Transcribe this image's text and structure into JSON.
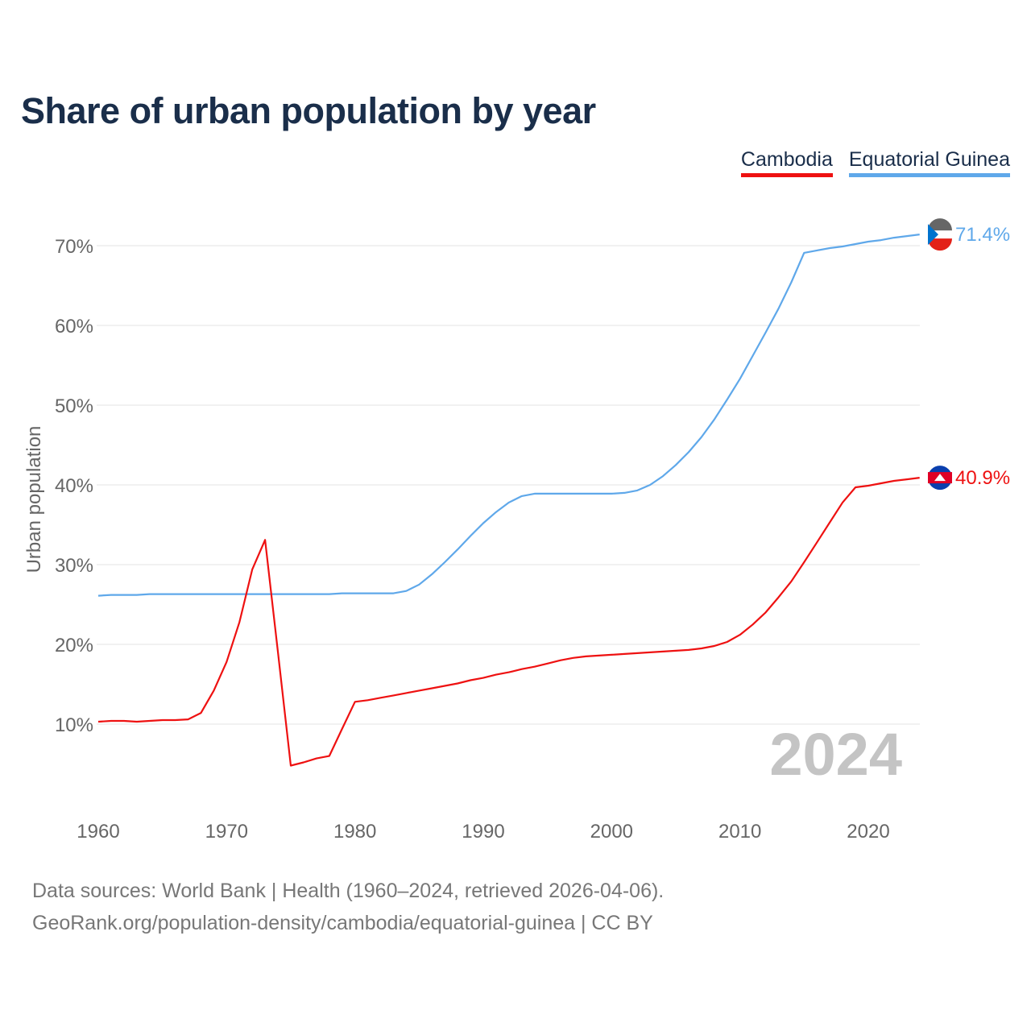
{
  "chart_data": {
    "type": "line",
    "title": "Share of urban population by year",
    "xlabel": "",
    "ylabel": "Urban population",
    "xlim": [
      1960,
      2024
    ],
    "ylim": [
      0,
      75
    ],
    "grid": true,
    "legend_position": "top-right",
    "xticks": [
      "1960",
      "1970",
      "1980",
      "1990",
      "2000",
      "2010",
      "2020"
    ],
    "yticks": [
      "10%",
      "20%",
      "30%",
      "40%",
      "50%",
      "60%",
      "70%"
    ],
    "watermark_year": "2024",
    "x": [
      1960,
      1961,
      1962,
      1963,
      1964,
      1965,
      1966,
      1967,
      1968,
      1969,
      1970,
      1971,
      1972,
      1973,
      1974,
      1975,
      1976,
      1977,
      1978,
      1979,
      1980,
      1981,
      1982,
      1983,
      1984,
      1985,
      1986,
      1987,
      1988,
      1989,
      1990,
      1991,
      1992,
      1993,
      1994,
      1995,
      1996,
      1997,
      1998,
      1999,
      2000,
      2001,
      2002,
      2003,
      2004,
      2005,
      2006,
      2007,
      2008,
      2009,
      2010,
      2011,
      2012,
      2013,
      2014,
      2015,
      2016,
      2017,
      2018,
      2019,
      2020,
      2021,
      2022,
      2023,
      2024
    ],
    "series": [
      {
        "name": "Cambodia",
        "color": "#ee1111",
        "end_label": "40.9%",
        "values": [
          10.3,
          10.4,
          10.4,
          10.3,
          10.4,
          10.5,
          10.5,
          10.6,
          11.4,
          14.2,
          17.8,
          22.8,
          29.4,
          33.1,
          19.0,
          4.8,
          5.2,
          5.7,
          6.0,
          9.4,
          12.8,
          13.0,
          13.3,
          13.6,
          13.9,
          14.2,
          14.5,
          14.8,
          15.1,
          15.5,
          15.8,
          16.2,
          16.5,
          16.9,
          17.2,
          17.6,
          18.0,
          18.3,
          18.5,
          18.6,
          18.7,
          18.8,
          18.9,
          19.0,
          19.1,
          19.2,
          19.3,
          19.5,
          19.8,
          20.3,
          21.2,
          22.5,
          24.0,
          25.9,
          27.9,
          30.3,
          32.8,
          35.3,
          37.8,
          39.7,
          39.9,
          40.2,
          40.5,
          40.7,
          40.9
        ]
      },
      {
        "name": "Equatorial Guinea",
        "color": "#5fa8ea",
        "end_label": "71.4%",
        "values": [
          26.1,
          26.2,
          26.2,
          26.2,
          26.3,
          26.3,
          26.3,
          26.3,
          26.3,
          26.3,
          26.3,
          26.3,
          26.3,
          26.3,
          26.3,
          26.3,
          26.3,
          26.3,
          26.3,
          26.4,
          26.4,
          26.4,
          26.4,
          26.4,
          26.7,
          27.5,
          28.8,
          30.3,
          31.9,
          33.6,
          35.2,
          36.6,
          37.8,
          38.6,
          38.9,
          38.9,
          38.9,
          38.9,
          38.9,
          38.9,
          38.9,
          39.0,
          39.3,
          40.0,
          41.1,
          42.5,
          44.1,
          46.0,
          48.2,
          50.7,
          53.3,
          56.2,
          59.1,
          62.1,
          65.4,
          69.1,
          69.4,
          69.7,
          69.9,
          70.2,
          70.5,
          70.7,
          71.0,
          71.2,
          71.4
        ]
      }
    ]
  },
  "footer": {
    "line1": "Data sources: World Bank | Health (1960–2024, retrieved 2026-04-06).",
    "line2": "GeoRank.org/population-density/cambodia/equatorial-guinea | CC BY"
  }
}
